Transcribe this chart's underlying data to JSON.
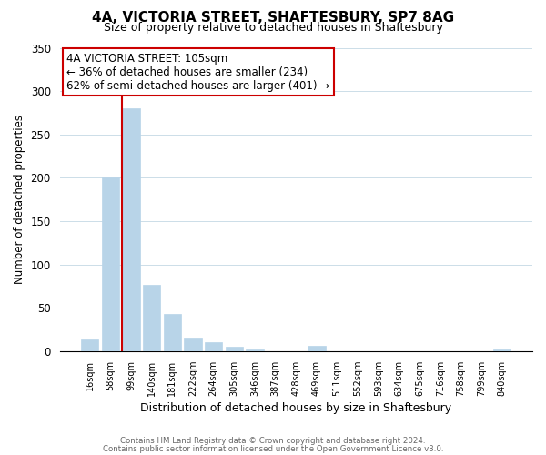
{
  "title": "4A, VICTORIA STREET, SHAFTESBURY, SP7 8AG",
  "subtitle": "Size of property relative to detached houses in Shaftesbury",
  "xlabel": "Distribution of detached houses by size in Shaftesbury",
  "ylabel": "Number of detached properties",
  "bar_labels": [
    "16sqm",
    "58sqm",
    "99sqm",
    "140sqm",
    "181sqm",
    "222sqm",
    "264sqm",
    "305sqm",
    "346sqm",
    "387sqm",
    "428sqm",
    "469sqm",
    "511sqm",
    "552sqm",
    "593sqm",
    "634sqm",
    "675sqm",
    "716sqm",
    "758sqm",
    "799sqm",
    "840sqm"
  ],
  "bar_values": [
    14,
    200,
    280,
    76,
    43,
    16,
    10,
    5,
    2,
    0,
    0,
    6,
    0,
    0,
    0,
    0,
    0,
    0,
    0,
    0,
    2
  ],
  "bar_color": "#b8d4e8",
  "vline_color": "#cc0000",
  "vline_bar_index": 2,
  "ylim": [
    0,
    350
  ],
  "yticks": [
    0,
    50,
    100,
    150,
    200,
    250,
    300,
    350
  ],
  "annotation_title": "4A VICTORIA STREET: 105sqm",
  "annotation_line1": "← 36% of detached houses are smaller (234)",
  "annotation_line2": "62% of semi-detached houses are larger (401) →",
  "annotation_box_color": "#ffffff",
  "annotation_box_edge": "#cc0000",
  "footer1": "Contains HM Land Registry data © Crown copyright and database right 2024.",
  "footer2": "Contains public sector information licensed under the Open Government Licence v3.0.",
  "background_color": "#ffffff",
  "grid_color": "#ccdde8"
}
